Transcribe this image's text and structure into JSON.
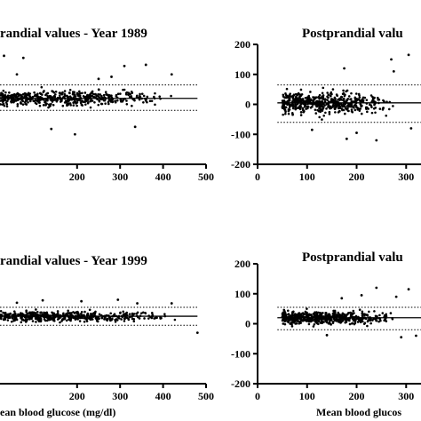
{
  "chart_data": [
    {
      "type": "scatter",
      "title": "randial values - Year 1989",
      "xlabel": "",
      "xticks": [
        200,
        300,
        400,
        500
      ],
      "xlim": [
        0,
        500
      ],
      "ylim": [
        -200,
        200
      ],
      "mean_line": 20,
      "limits": [
        65,
        -20
      ],
      "x_range": [
        0,
        480
      ],
      "outliers": [
        [
          30,
          162
        ],
        [
          75,
          155
        ],
        [
          310,
          128
        ],
        [
          360,
          132
        ],
        [
          335,
          -75
        ],
        [
          195,
          -100
        ],
        [
          140,
          -82
        ],
        [
          280,
          92
        ],
        [
          60,
          100
        ],
        [
          420,
          100
        ],
        [
          250,
          85
        ]
      ]
    },
    {
      "type": "scatter",
      "title": "Postprandial valu",
      "xlabel": "",
      "xticks": [
        0,
        100,
        200,
        300
      ],
      "yticks": [
        200,
        100,
        0,
        -100,
        -200
      ],
      "xlim": [
        0,
        330
      ],
      "ylim": [
        -200,
        200
      ],
      "mean_line": 5,
      "limits": [
        65,
        -60
      ],
      "x_range": [
        40,
        330
      ],
      "outliers": [
        [
          305,
          165
        ],
        [
          270,
          150
        ],
        [
          175,
          120
        ],
        [
          275,
          110
        ],
        [
          110,
          -85
        ],
        [
          180,
          -115
        ],
        [
          240,
          -120
        ],
        [
          200,
          -95
        ],
        [
          310,
          -80
        ]
      ]
    },
    {
      "type": "scatter",
      "title": "randial values - Year 1999",
      "xlabel": "ean blood glucose (mg/dl)",
      "xticks": [
        200,
        300,
        400,
        500
      ],
      "xlim": [
        0,
        500
      ],
      "ylim": [
        -200,
        200
      ],
      "mean_line": 25,
      "limits": [
        55,
        -5
      ],
      "x_range": [
        0,
        480
      ],
      "outliers": [
        [
          480,
          -30
        ],
        [
          210,
          75
        ],
        [
          295,
          80
        ],
        [
          120,
          78
        ],
        [
          340,
          68
        ],
        [
          60,
          70
        ],
        [
          420,
          68
        ]
      ]
    },
    {
      "type": "scatter",
      "title": "Postprandial valu",
      "xlabel": "Mean blood glucos",
      "xticks": [
        0,
        100,
        200,
        300
      ],
      "yticks": [
        200,
        100,
        0,
        -100,
        -200
      ],
      "xlim": [
        0,
        330
      ],
      "ylim": [
        -200,
        200
      ],
      "mean_line": 20,
      "limits": [
        55,
        -20
      ],
      "x_range": [
        40,
        330
      ],
      "outliers": [
        [
          240,
          120
        ],
        [
          305,
          115
        ],
        [
          210,
          95
        ],
        [
          280,
          90
        ],
        [
          170,
          85
        ],
        [
          290,
          -45
        ],
        [
          320,
          -40
        ],
        [
          140,
          -38
        ]
      ]
    }
  ]
}
